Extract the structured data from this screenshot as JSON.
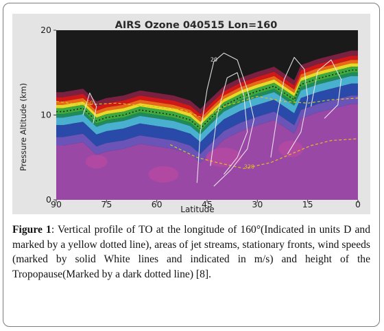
{
  "figure": {
    "label": "Figure 1",
    "caption": ": Vertical profile of TO at the longitude of 160°(Indicated in units D and marked by a yellow dotted line), areas of jet streams, stationary fronts, wind speeds (marked by solid White lines and indicated in m/s) and height of the Tropopause(Marked by a dark dotted line) [8]."
  },
  "chart_data": {
    "type": "heatmap",
    "title": "AIRS Ozone 040515 Lon=160",
    "xlabel": "Latitude",
    "ylabel": "Pressure Altitude (km)",
    "x_ticks": [
      90,
      75,
      60,
      45,
      30,
      15,
      0
    ],
    "y_ticks": [
      0,
      10,
      20
    ],
    "xlim": [
      90,
      0
    ],
    "ylim": [
      0,
      20
    ],
    "tropopause_altitude_km": [
      [
        88,
        10.6
      ],
      [
        82,
        11.0
      ],
      [
        78,
        9.5
      ],
      [
        75,
        9.9
      ],
      [
        70,
        10.2
      ],
      [
        65,
        10.8
      ],
      [
        60,
        10.5
      ],
      [
        55,
        10.2
      ],
      [
        50,
        9.6
      ],
      [
        47,
        8.6
      ],
      [
        44,
        9.8
      ],
      [
        40,
        11.3
      ],
      [
        35,
        12.3
      ],
      [
        30,
        13.0
      ],
      [
        25,
        13.6
      ],
      [
        22,
        12.8
      ],
      [
        19,
        12.0
      ],
      [
        17,
        13.8
      ],
      [
        12,
        14.5
      ],
      [
        7,
        15.0
      ],
      [
        2,
        15.5
      ],
      [
        0,
        15.5
      ]
    ],
    "contour_labels": [
      {
        "text": "350",
        "series": "total ozone (D)",
        "latitude": 82,
        "altitude_km": 11.2
      },
      {
        "text": "320",
        "series": "total ozone (D)",
        "latitude": 34,
        "altitude_km": 3.7
      },
      {
        "text": "20",
        "series": "wind speed (m/s)",
        "latitude": 44,
        "altitude_km": 16.3
      }
    ]
  },
  "colors": {
    "background": "#1a1a1a",
    "lower_purple": "#9a48a6",
    "blue_band": "#2a4aaa",
    "cyan_band": "#4ab0d0",
    "green_band": "#3caa3c",
    "yellow_band": "#e8d82a",
    "orange_band": "#e86a18",
    "red_band": "#d01818",
    "ozone_line": "#e0c020",
    "wind_line": "#f2f2f2"
  }
}
